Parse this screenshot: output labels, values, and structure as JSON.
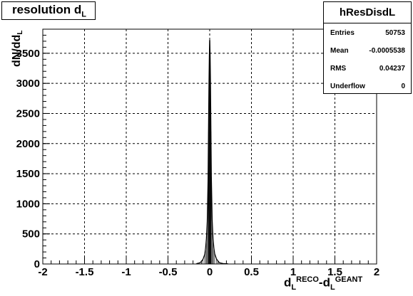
{
  "chart_data": {
    "type": "bar",
    "title_main": "resolution d",
    "title_sub": "L",
    "ylabel_text": "dN/dd",
    "ylabel_sub": "L",
    "xlabel_parts": [
      "d",
      "L",
      "RECO",
      "-d",
      "L",
      "GEANT"
    ],
    "xlim": [
      -2,
      2
    ],
    "ylim": [
      0,
      3900
    ],
    "x_ticks": [
      "-2",
      "-1.5",
      "-1",
      "-0.5",
      "0",
      "0.5",
      "1",
      "1.5",
      "2"
    ],
    "y_ticks": [
      "0",
      "500",
      "1000",
      "1500",
      "2000",
      "2500",
      "3000",
      "3500"
    ],
    "grid": true,
    "peak_x": 0.0,
    "peak_value": 3720,
    "series": [
      {
        "x": [
          -0.16,
          -0.12,
          -0.1,
          -0.08,
          -0.06,
          -0.05,
          -0.04,
          -0.03,
          -0.02,
          -0.015,
          -0.01,
          -0.005,
          0.0,
          0.005,
          0.01,
          0.015,
          0.02,
          0.03,
          0.04,
          0.05,
          0.06,
          0.08,
          0.1,
          0.12,
          0.16,
          0.22
        ],
        "values": [
          5,
          20,
          40,
          80,
          160,
          260,
          420,
          700,
          1400,
          2200,
          2900,
          3450,
          3720,
          3500,
          2950,
          2200,
          1450,
          720,
          430,
          270,
          170,
          90,
          45,
          20,
          8,
          3
        ]
      }
    ],
    "stats": {
      "name": "hResDisdL",
      "rows": [
        {
          "label": "Entries",
          "value": "50753"
        },
        {
          "label": "Mean",
          "value": "-0.0005538"
        },
        {
          "label": "RMS",
          "value": "0.04237"
        },
        {
          "label": "Underflow",
          "value": "0"
        }
      ]
    }
  }
}
